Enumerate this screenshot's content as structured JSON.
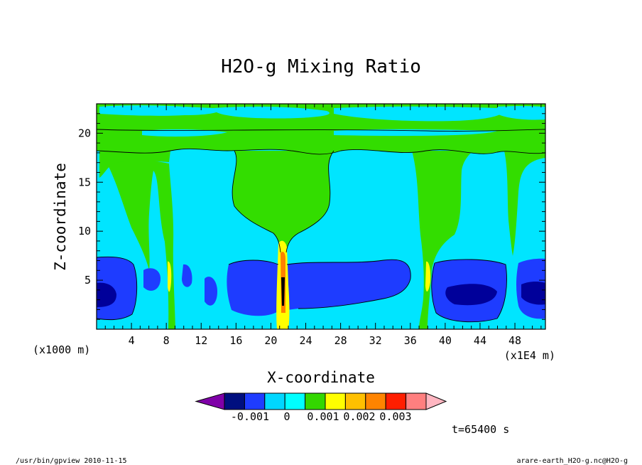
{
  "chart_data": {
    "type": "heatmap",
    "title": "H2O-g Mixing Ratio",
    "xlabel": "X-coordinate",
    "ylabel": "Z-coordinate",
    "x_unit_label": "(x1000 m)",
    "x_scale_label": "(x1E4 m)",
    "xlim": [
      0,
      51.5
    ],
    "ylim": [
      0,
      23
    ],
    "x_ticks": [
      4,
      8,
      12,
      16,
      20,
      24,
      28,
      32,
      36,
      40,
      44,
      48
    ],
    "y_ticks": [
      5,
      10,
      15,
      20
    ],
    "colorbar": {
      "colors": [
        "#7f00a8",
        "#000f7f",
        "#1f3cff",
        "#00d7ff",
        "#00ffff",
        "#33d700",
        "#ffff00",
        "#ffc000",
        "#ff8400",
        "#ff1e00",
        "#ff7f7f",
        "#ffb6c1"
      ],
      "labels": [
        "-0.001",
        "0",
        "0.001",
        "0.002",
        "0.003"
      ]
    },
    "time_label": "t=65400 s",
    "series_colors": {
      "background": "#00e5ff",
      "dry_deep": "#00009a",
      "dry": "#1e3cff",
      "moist": "#33dd00",
      "high_moist": "#ffff00",
      "peak": "#ff8000"
    }
  },
  "footer": {
    "left": "/usr/bin/gpview  2010-11-15",
    "right": "arare-earth_H2O-g.nc@H2O-g"
  }
}
